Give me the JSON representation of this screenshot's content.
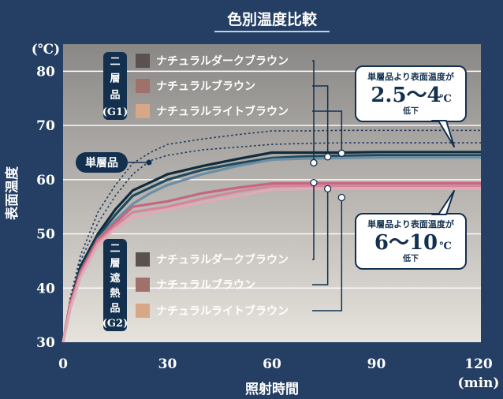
{
  "chart_data": {
    "type": "line",
    "title": "色別温度比較",
    "xlabel": "照射時間",
    "ylabel": "表面温度",
    "x_unit": "(min)",
    "y_unit": "(℃)",
    "xlim": [
      0,
      120
    ],
    "ylim": [
      30,
      85
    ],
    "x_ticks": [
      "0",
      "30",
      "60",
      "90",
      "120"
    ],
    "y_ticks": [
      "30",
      "40",
      "50",
      "60",
      "70",
      "80"
    ],
    "y_tick_values": [
      30,
      40,
      50,
      60,
      70,
      80
    ],
    "grid": "horizontal",
    "groups": [
      {
        "label": "単層品"
      },
      {
        "label_chars": [
          "二",
          "層",
          "品",
          "(G1)"
        ]
      },
      {
        "label_chars": [
          "二",
          "層",
          "遮",
          "熱",
          "品",
          "(G2)"
        ]
      }
    ],
    "series": [
      {
        "name": "単層品",
        "group": "single",
        "color": "#1e3a5f",
        "dash": "dot",
        "x": [
          0,
          2,
          5,
          10,
          15,
          20,
          25,
          30,
          40,
          50,
          60,
          70,
          80,
          90,
          100,
          110,
          120
        ],
        "y": [
          30,
          38,
          46,
          54,
          59,
          63,
          65,
          66.5,
          67.5,
          68.3,
          69,
          69,
          69.1,
          69.1,
          69.1,
          69.1,
          69.1
        ]
      },
      {
        "name": "単層品",
        "group": "single",
        "color": "#1e3a5f",
        "dash": "dot",
        "x": [
          0,
          2,
          5,
          10,
          15,
          20,
          25,
          30,
          40,
          50,
          60,
          70,
          80,
          90,
          100,
          110,
          120
        ],
        "y": [
          30,
          37,
          45,
          52,
          57,
          61,
          63.5,
          64.5,
          65.5,
          66,
          66.5,
          66.7,
          66.8,
          66.8,
          66.8,
          66.8,
          66.8
        ]
      },
      {
        "name": "ナチュラルダークブラウン",
        "group": "G1",
        "color": "#112b3d",
        "x": [
          0,
          2,
          5,
          10,
          15,
          20,
          25,
          30,
          40,
          50,
          60,
          70,
          80,
          90,
          100,
          110,
          120
        ],
        "y": [
          30,
          37,
          44,
          50,
          54.5,
          58,
          59.5,
          61,
          62.5,
          63.8,
          65,
          65,
          65,
          65.1,
          65.1,
          65.1,
          65.1
        ]
      },
      {
        "name": "ナチュラルブラウン",
        "group": "G1",
        "color": "#1f4a5c",
        "x": [
          0,
          2,
          5,
          10,
          15,
          20,
          25,
          30,
          40,
          50,
          60,
          70,
          80,
          90,
          100,
          110,
          120
        ],
        "y": [
          30,
          36.5,
          43.5,
          49.5,
          53.5,
          57,
          58.5,
          60,
          61.8,
          63,
          64,
          64.3,
          64.4,
          64.5,
          64.5,
          64.5,
          64.5
        ]
      },
      {
        "name": "ナチュラルライトブラウン",
        "group": "G1",
        "color": "#6c8ea6",
        "x": [
          0,
          2,
          5,
          10,
          15,
          20,
          25,
          30,
          40,
          50,
          60,
          70,
          80,
          90,
          100,
          110,
          120
        ],
        "y": [
          30,
          36,
          43,
          49,
          52.5,
          55.5,
          57.5,
          59,
          61,
          62.5,
          63.7,
          63.9,
          64,
          64.1,
          64.1,
          64.1,
          64.1
        ]
      },
      {
        "name": "ナチュラルダークブラウン",
        "group": "G2",
        "color": "#c46781",
        "x": [
          0,
          2,
          5,
          10,
          15,
          20,
          25,
          30,
          40,
          50,
          60,
          70,
          80,
          90,
          100,
          110,
          120
        ],
        "y": [
          30,
          37,
          43,
          49,
          52,
          55,
          55.5,
          56,
          57.5,
          58.5,
          59.3,
          59.3,
          59.3,
          59.3,
          59.3,
          59.3,
          59.3
        ]
      },
      {
        "name": "ナチュラルブラウン",
        "group": "G2",
        "color": "#d4869a",
        "x": [
          0,
          2,
          5,
          10,
          15,
          20,
          25,
          30,
          40,
          50,
          60,
          70,
          80,
          90,
          100,
          110,
          120
        ],
        "y": [
          30,
          36.5,
          42.5,
          48.5,
          51.5,
          54,
          54.5,
          55,
          56.5,
          57.8,
          58.8,
          58.9,
          58.9,
          58.9,
          58.9,
          58.9,
          58.9
        ]
      },
      {
        "name": "ナチュラルライトブラウン",
        "group": "G2",
        "color": "#e3a9b6",
        "x": [
          0,
          2,
          5,
          10,
          15,
          20,
          25,
          30,
          40,
          50,
          60,
          70,
          80,
          90,
          100,
          110,
          120
        ],
        "y": [
          30,
          36,
          42,
          48,
          51,
          53,
          53.8,
          54.5,
          55.8,
          57,
          58.2,
          58.3,
          58.3,
          58.3,
          58.3,
          58.3,
          58.3
        ]
      }
    ],
    "legend_g1": [
      {
        "label": "ナチュラルダークブラウン",
        "swatch": "#5b5150"
      },
      {
        "label": "ナチュラルブラウン",
        "swatch": "#a0706a"
      },
      {
        "label": "ナチュラルライトブラウン",
        "swatch": "#d6a888"
      }
    ],
    "legend_g2": [
      {
        "label": "ナチュラルダークブラウン",
        "swatch": "#5b5150"
      },
      {
        "label": "ナチュラルブラウン",
        "swatch": "#a0706a"
      },
      {
        "label": "ナチュラルライトブラウン",
        "swatch": "#d6a888"
      }
    ],
    "annotations": [
      {
        "line1": "単層品より表面温度が",
        "value": "2.5〜4",
        "unit": "℃",
        "line3": "低下"
      },
      {
        "line1": "単層品より表面温度が",
        "value": "6〜10",
        "unit": "℃",
        "line3": "低下"
      }
    ],
    "colors": {
      "background": "#243f63",
      "plot_top": "#8a8886",
      "plot_bottom": "#e6e2dc",
      "grid": "#ffffff",
      "callout_fill": "#ffffff",
      "callout_text": "#13304f",
      "tag": "#13304f"
    }
  }
}
